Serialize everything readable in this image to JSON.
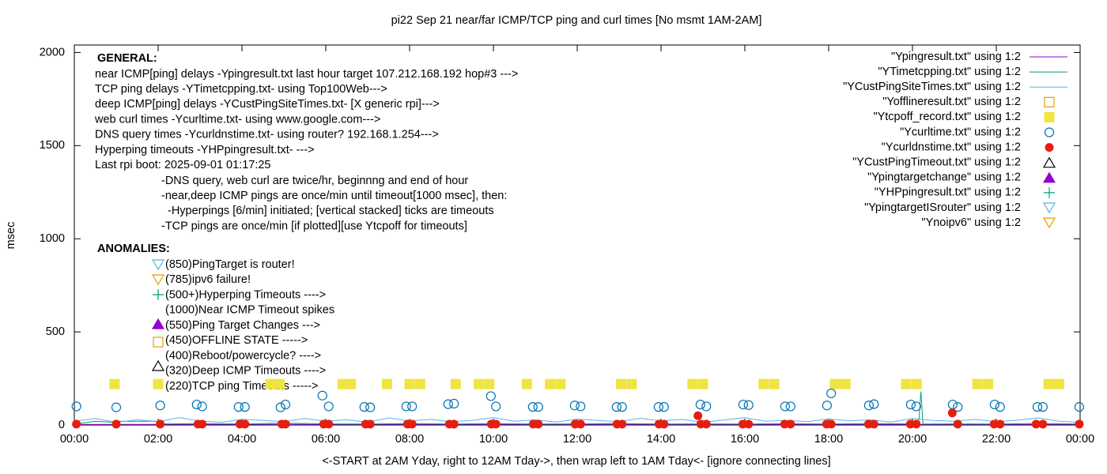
{
  "chart_data": {
    "type": "scatter",
    "title": "pi22 Sep 21  near/far ICMP/TCP ping and curl times [No msmt 1AM-2AM]",
    "xlabel": "<-START at 2AM Yday, right to 12AM Tday->, then wrap left to 1AM Tday<- [ignore connecting lines]",
    "ylabel": "msec",
    "xlim": [
      0,
      24
    ],
    "ylim": [
      0,
      2040
    ],
    "xticks": [
      {
        "value": 0,
        "label": "00:00"
      },
      {
        "value": 2,
        "label": "02:00"
      },
      {
        "value": 4,
        "label": "04:00"
      },
      {
        "value": 6,
        "label": "06:00"
      },
      {
        "value": 8,
        "label": "08:00"
      },
      {
        "value": 10,
        "label": "10:00"
      },
      {
        "value": 12,
        "label": "12:00"
      },
      {
        "value": 14,
        "label": "14:00"
      },
      {
        "value": 16,
        "label": "16:00"
      },
      {
        "value": 18,
        "label": "18:00"
      },
      {
        "value": 20,
        "label": "20:00"
      },
      {
        "value": 22,
        "label": "22:00"
      },
      {
        "value": 24,
        "label": "00:00"
      }
    ],
    "yticks": [
      0,
      500,
      1000,
      1500,
      2000
    ],
    "grid": false,
    "legend": "top-right",
    "annotations": [
      "GENERAL:",
      "near ICMP[ping] delays -Ypingresult.txt last hour target 107.212.168.192 hop#3 --->",
      "TCP ping delays -YTimetcpping.txt- using Top100Web--->",
      "deep ICMP[ping] delays -YCustPingSiteTimes.txt- [X generic rpi]--->",
      "web curl times -Ycurltime.txt- using www.google.com--->",
      "DNS query times -Ycurldnstime.txt- using router? 192.168.1.254--->",
      "Hyperping timeouts -YHPpingresult.txt- --->",
      "Last rpi boot: 2025-09-01 01:17:25",
      "-DNS query, web curl are twice/hr, beginnng and end of hour",
      "-near,deep ICMP pings are once/min until timeout[1000 msec], then:",
      "-Hyperpings [6/min] initiated; [vertical stacked] ticks are timeouts",
      "-TCP pings are once/min [if plotted][use Ytcpoff for timeouts]",
      "ANOMALIES:",
      "(850)PingTarget is router!",
      "(785)ipv6 failure!",
      "(500+)Hyperping Timeouts ---->",
      "(1000)Near ICMP Timeout spikes",
      "(550)Ping Target Changes --->",
      "(450)OFFLINE STATE ----->",
      "(400)Reboot/powercycle? ---->",
      "(320)Deep ICMP Timeouts ---->",
      "(220)TCP ping Timeouts ----->"
    ],
    "series": [
      {
        "name": "\"Ypingresult.txt\" using 1:2",
        "style": "line",
        "color": "#9400d3",
        "x": [
          0,
          6,
          12,
          18,
          24
        ],
        "values": [
          3,
          3,
          3,
          3,
          3
        ]
      },
      {
        "name": "\"YTimetcpping.txt\" using 1:2",
        "style": "line",
        "color": "#009e73",
        "x": [
          0,
          0.5,
          0.95,
          1.0,
          2.0,
          2.05,
          3,
          4,
          5,
          6,
          7,
          8,
          9,
          10,
          11,
          12,
          13,
          14,
          15,
          16,
          17,
          18,
          19,
          20,
          20.15,
          20.2,
          20.25,
          21,
          22,
          23,
          24
        ],
        "values": [
          5,
          20,
          15,
          20,
          20,
          5,
          8,
          5,
          10,
          6,
          5,
          8,
          5,
          7,
          5,
          6,
          8,
          5,
          6,
          5,
          7,
          5,
          8,
          6,
          5,
          180,
          5,
          6,
          5,
          8,
          5
        ]
      },
      {
        "name": "\"YCustPingSiteTimes.txt\" using 1:2",
        "style": "line",
        "color": "#56b4e9",
        "x": [
          0,
          0.5,
          1,
          1.5,
          2,
          2.5,
          3,
          3.5,
          4,
          4.5,
          5,
          5.5,
          6,
          6.5,
          7,
          7.5,
          8,
          8.5,
          9,
          9.5,
          10,
          10.5,
          11,
          11.5,
          12,
          12.5,
          13,
          13.5,
          14,
          14.5,
          15,
          15.5,
          16,
          16.5,
          17,
          17.5,
          18,
          18.5,
          19,
          19.5,
          20,
          20.5,
          21,
          21.5,
          22,
          22.5,
          23,
          23.5,
          24
        ],
        "values": [
          20,
          35,
          15,
          28,
          18,
          40,
          22,
          15,
          30,
          25,
          18,
          35,
          20,
          28,
          15,
          38,
          22,
          30,
          18,
          25,
          40,
          20,
          28,
          16,
          32,
          24,
          18,
          36,
          22,
          30,
          15,
          27,
          40,
          20,
          25,
          18,
          33,
          22,
          28,
          16,
          35,
          24,
          20,
          30,
          18,
          26,
          38,
          20,
          15
        ]
      },
      {
        "name": "\"Yofflineresult.txt\" using 1:2",
        "style": "square-open",
        "color": "#e69f00",
        "x": [],
        "values": []
      },
      {
        "name": "\"Ytcpoff_record.txt\" using 1:2",
        "style": "square-filled",
        "color": "#f0e442",
        "x": [
          0.96,
          2.0,
          4.68,
          4.9,
          6.4,
          6.6,
          7.46,
          8.0,
          8.25,
          9.1,
          9.65,
          9.9,
          10.8,
          11.35,
          11.6,
          13.05,
          13.3,
          14.75,
          15.0,
          16.45,
          16.7,
          18.15,
          18.4,
          19.85,
          20.1,
          21.55,
          21.8,
          23.25,
          23.5
        ],
        "values": [
          220,
          220,
          220,
          220,
          220,
          220,
          220,
          220,
          220,
          220,
          220,
          220,
          220,
          220,
          220,
          220,
          220,
          220,
          220,
          220,
          220,
          220,
          220,
          220,
          220,
          220,
          220,
          220,
          220
        ]
      },
      {
        "name": "\"Ycurltime.txt\" using 1:2",
        "style": "circle-open",
        "color": "#0072b2",
        "x": [
          0.05,
          1.0,
          2.05,
          2.92,
          3.05,
          3.92,
          4.07,
          4.92,
          5.04,
          5.92,
          6.07,
          6.92,
          7.06,
          7.92,
          8.06,
          8.92,
          9.06,
          9.94,
          10.06,
          10.94,
          11.07,
          11.94,
          12.08,
          12.94,
          13.07,
          13.94,
          14.07,
          14.94,
          15.08,
          15.96,
          16.09,
          16.96,
          17.09,
          17.96,
          18.06,
          18.96,
          19.08,
          19.96,
          20.09,
          20.96,
          21.08,
          21.96,
          22.09,
          22.98,
          23.11,
          23.98
        ],
        "values": [
          100,
          95,
          105,
          110,
          100,
          97,
          97,
          95,
          110,
          158,
          100,
          97,
          95,
          100,
          100,
          112,
          115,
          155,
          100,
          97,
          97,
          105,
          100,
          97,
          97,
          97,
          97,
          110,
          100,
          110,
          107,
          100,
          100,
          105,
          170,
          105,
          112,
          110,
          100,
          110,
          97,
          110,
          97,
          97,
          97,
          97
        ]
      },
      {
        "name": "\"Ycurldnstime.txt\" using 1:2",
        "style": "circle-filled",
        "color": "#e51e10",
        "x": [
          0.05,
          1.0,
          2.05,
          2.95,
          3.05,
          3.95,
          4.07,
          4.95,
          5.04,
          5.95,
          6.07,
          6.95,
          7.06,
          7.95,
          8.06,
          8.95,
          9.06,
          9.95,
          10.06,
          10.95,
          11.07,
          11.95,
          12.08,
          12.95,
          13.07,
          13.95,
          14.07,
          14.88,
          14.95,
          15.08,
          15.95,
          16.09,
          16.95,
          17.09,
          17.95,
          18.06,
          18.95,
          19.08,
          19.95,
          20.09,
          20.95,
          21.08,
          21.95,
          22.09,
          22.95,
          23.11,
          23.98
        ],
        "values": [
          5,
          5,
          5,
          5,
          5,
          5,
          5,
          5,
          5,
          5,
          5,
          5,
          5,
          5,
          5,
          5,
          5,
          5,
          5,
          5,
          5,
          5,
          5,
          5,
          5,
          5,
          5,
          50,
          5,
          5,
          5,
          5,
          5,
          5,
          5,
          5,
          5,
          5,
          5,
          5,
          65,
          5,
          5,
          5,
          5,
          5,
          5
        ]
      },
      {
        "name": "\"YCustPingTimeout.txt\" using 1:2",
        "style": "triangle-up-open",
        "color": "#000000",
        "x": [],
        "values": []
      },
      {
        "name": "\"Ypingtargetchange\" using 1:2",
        "style": "triangle-up-filled",
        "color": "#9400d3",
        "x": [],
        "values": []
      },
      {
        "name": "\"YHPpingresult.txt\" using 1:2",
        "style": "plus",
        "color": "#009e73",
        "x": [],
        "values": []
      },
      {
        "name": "\"YpingtargetISrouter\" using 1:2",
        "style": "triangle-down-open",
        "color": "#56b4e9",
        "x": [],
        "values": []
      },
      {
        "name": "\"Ynoipv6\" using 1:2",
        "style": "triangle-down-open",
        "color": "#e69f00",
        "x": [],
        "values": []
      }
    ]
  }
}
